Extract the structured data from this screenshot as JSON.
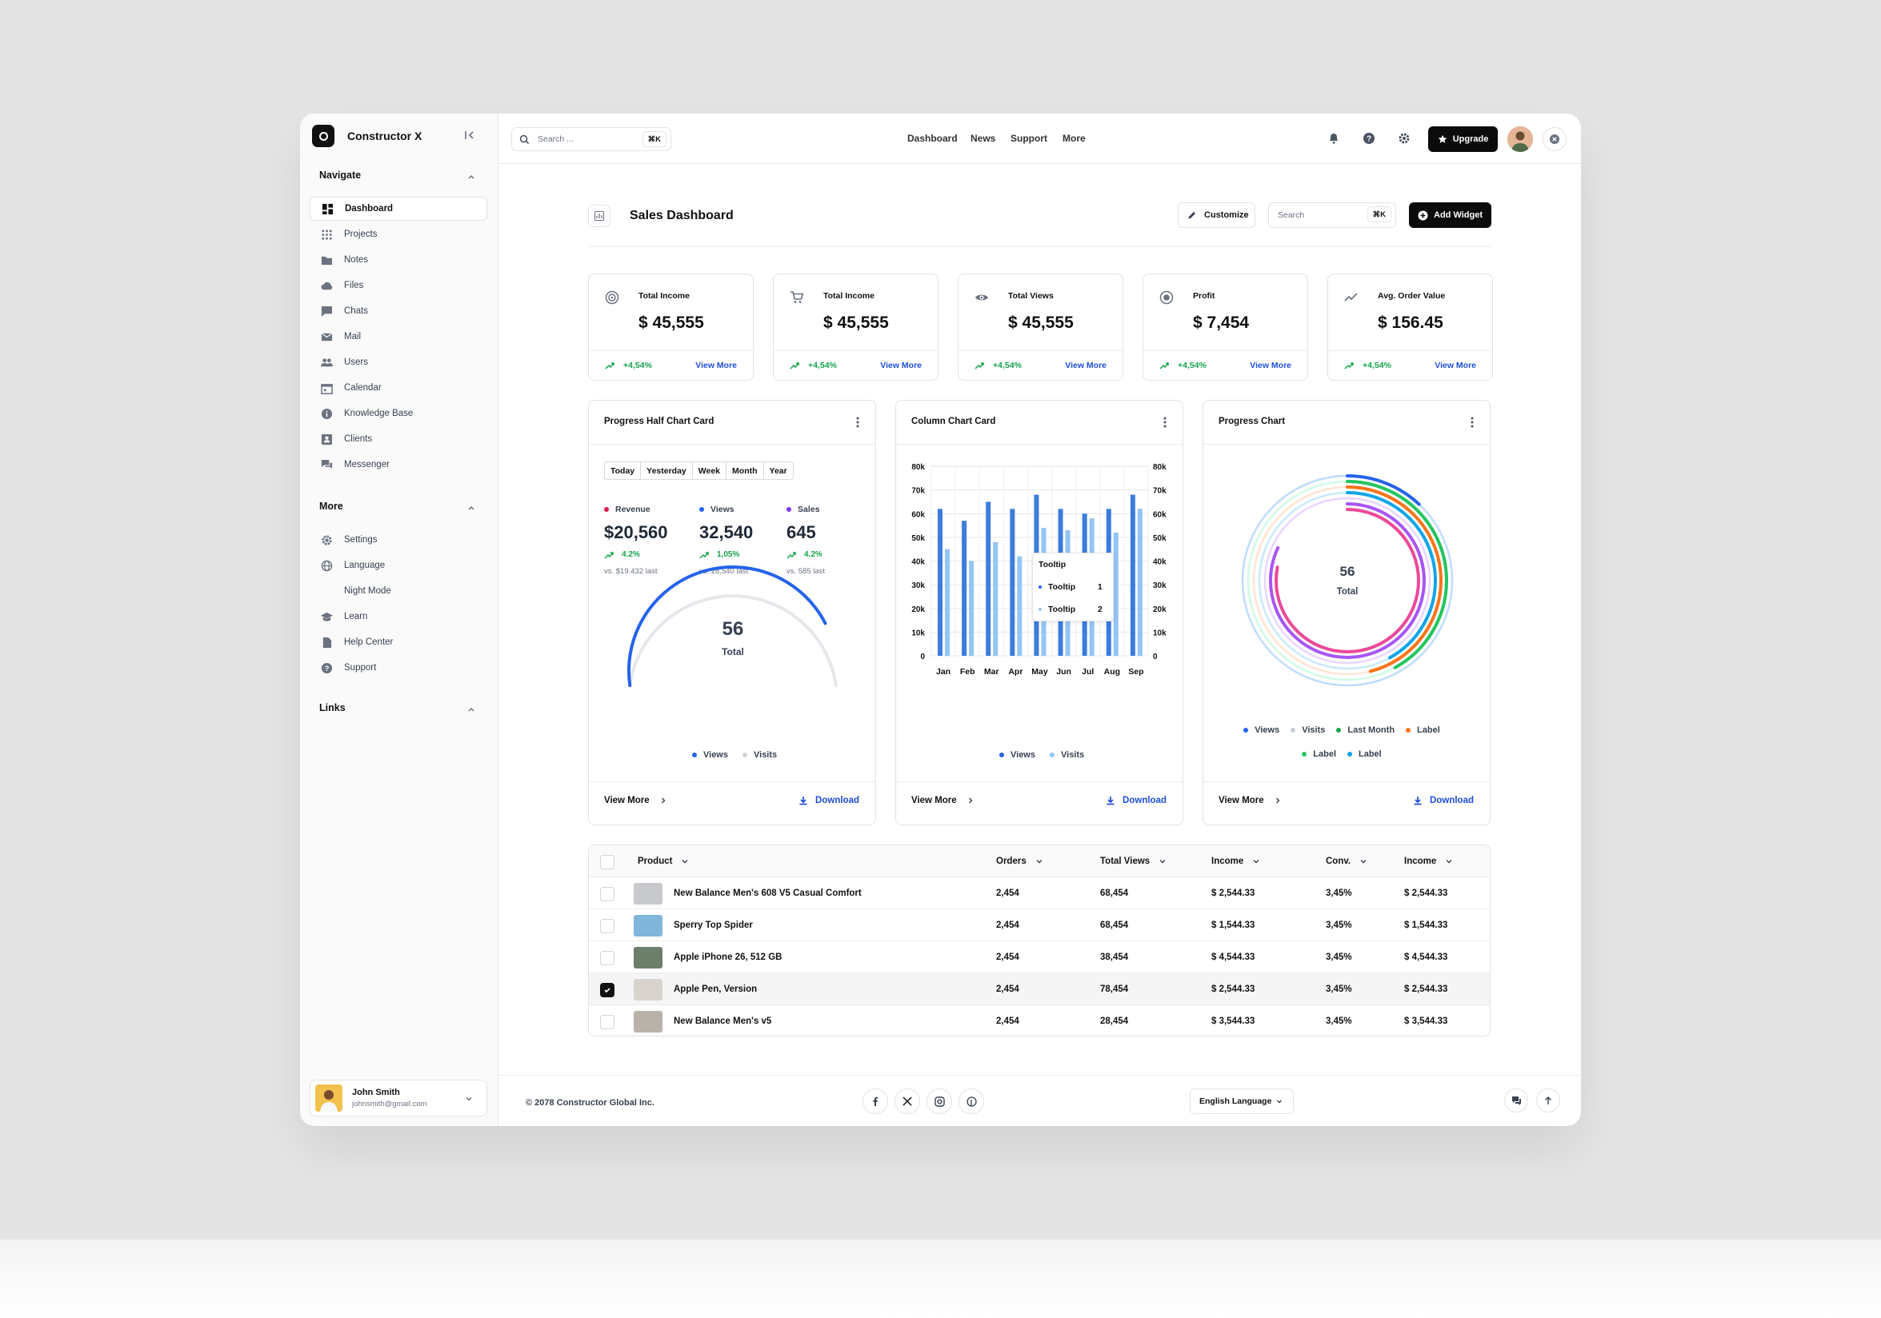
{
  "app": {
    "name": "Constructor X"
  },
  "sidebar": {
    "navigate_title": "Navigate",
    "navigate": [
      {
        "label": "Dashboard",
        "icon": "dashboard-icon"
      },
      {
        "label": "Projects",
        "icon": "grid-icon"
      },
      {
        "label": "Notes",
        "icon": "folder-icon"
      },
      {
        "label": "Files",
        "icon": "cloud-icon"
      },
      {
        "label": "Chats",
        "icon": "chat-icon"
      },
      {
        "label": "Mail",
        "icon": "mail-icon"
      },
      {
        "label": "Users",
        "icon": "users-icon"
      },
      {
        "label": "Calendar",
        "icon": "calendar-icon"
      },
      {
        "label": "Knowledge Base",
        "icon": "info-icon"
      },
      {
        "label": "Clients",
        "icon": "contact-icon"
      },
      {
        "label": "Messenger",
        "icon": "messenger-icon"
      }
    ],
    "more_title": "More",
    "more": [
      {
        "label": "Settings",
        "icon": "gear-icon"
      },
      {
        "label": "Language",
        "icon": "globe-icon"
      },
      {
        "label": "Night Mode",
        "icon": "moon-icon"
      },
      {
        "label": "Learn",
        "icon": "graduation-icon"
      },
      {
        "label": "Help Center",
        "icon": "document-icon"
      },
      {
        "label": "Support",
        "icon": "help-icon"
      }
    ],
    "links_title": "Links",
    "user": {
      "name": "John Smith",
      "email": "johnsmith@gmail.com"
    }
  },
  "topbar": {
    "search_placeholder": "Search ...",
    "search_shortcut": "⌘K",
    "nav": [
      "Dashboard",
      "News",
      "Support",
      "More"
    ],
    "upgrade_label": "Upgrade"
  },
  "page": {
    "title": "Sales Dashboard",
    "customize_label": "Customize",
    "search_placeholder": "Search",
    "search_shortcut": "⌘K",
    "add_widget_label": "Add Widget"
  },
  "stats": [
    {
      "label": "Total Income",
      "value": "$ 45,555",
      "trend": "+4,54%",
      "link": "View More",
      "icon": "target-icon"
    },
    {
      "label": "Total Income",
      "value": "$ 45,555",
      "trend": "+4,54%",
      "link": "View More",
      "icon": "cart-icon"
    },
    {
      "label": "Total Views",
      "value": "$ 45,555",
      "trend": "+4,54%",
      "link": "View More",
      "icon": "eye-icon"
    },
    {
      "label": "Profit",
      "value": "$ 7,454",
      "trend": "+4,54%",
      "link": "View More",
      "icon": "radio-icon"
    },
    {
      "label": "Avg. Order Value",
      "value": "$ 156.45",
      "trend": "+4,54%",
      "link": "View More",
      "icon": "trend-icon"
    }
  ],
  "cards": {
    "half": {
      "title": "Progress Half Chart Card",
      "periods": [
        "Today",
        "Yesterday",
        "Week",
        "Month",
        "Year"
      ],
      "metrics": [
        {
          "label": "Revenue",
          "value": "$20,560",
          "change": "4.2%",
          "sub": "vs. $19.432 last",
          "color": "#e11d48"
        },
        {
          "label": "Views",
          "value": "32,540",
          "change": "1,05%",
          "sub": "vs. 28,540 last",
          "color": "#2563eb"
        },
        {
          "label": "Sales",
          "value": "645",
          "change": "4.2%",
          "sub": "vs. 585 last",
          "color": "#7c3aed"
        }
      ],
      "gauge": {
        "value": "56",
        "label": "Total",
        "fraction": 0.82
      },
      "legend": [
        "Views",
        "Visits"
      ]
    },
    "column": {
      "title": "Column Chart Card",
      "legend": [
        "Views",
        "Visits"
      ],
      "tooltip": {
        "title": "Tooltip",
        "rows": [
          {
            "label": "Tooltip",
            "value": "1"
          },
          {
            "label": "Tooltip",
            "value": "2"
          }
        ]
      }
    },
    "progress": {
      "title": "Progress Chart",
      "center_value": "56",
      "center_label": "Total",
      "legend": [
        {
          "label": "Views",
          "color": "#2563eb"
        },
        {
          "label": "Visits",
          "color": "#c7cdd6"
        },
        {
          "label": "Last Month",
          "color": "#16a34a"
        },
        {
          "label": "Label",
          "color": "#f97316"
        },
        {
          "label": "Label",
          "color": "#22c55e"
        },
        {
          "label": "Label",
          "color": "#0ea5e9"
        }
      ]
    },
    "view_more": "View More",
    "download": "Download"
  },
  "chart_data": [
    {
      "type": "bar",
      "title": "Column Chart Card",
      "categories": [
        "Jan",
        "Feb",
        "Mar",
        "Apr",
        "May",
        "Jun",
        "Jul",
        "Aug",
        "Sep"
      ],
      "series": [
        {
          "name": "Views",
          "values": [
            62000,
            57000,
            65000,
            62000,
            68000,
            62000,
            60000,
            62000,
            68000
          ],
          "color": "#3b7ddd"
        },
        {
          "name": "Visits",
          "values": [
            45000,
            40000,
            48000,
            42000,
            54000,
            53000,
            58000,
            52000,
            62000
          ],
          "color": "#93c5f4"
        }
      ],
      "yticks": [
        "0",
        "10k",
        "20k",
        "30k",
        "40k",
        "50k",
        "60k",
        "70k",
        "80k"
      ],
      "ylim": [
        0,
        80000
      ],
      "grid": true
    },
    {
      "type": "pie",
      "title": "Progress Chart",
      "rings": [
        {
          "color": "#bfdbfe",
          "fraction": 1.0
        },
        {
          "color": "#2563eb",
          "fraction": 0.12
        },
        {
          "color": "#d1fae5",
          "fraction": 1.0
        },
        {
          "color": "#22c55e",
          "fraction": 0.42
        },
        {
          "color": "#ffe4d0",
          "fraction": 1.0
        },
        {
          "color": "#f97316",
          "fraction": 0.46
        },
        {
          "color": "#c9e9f9",
          "fraction": 1.0
        },
        {
          "color": "#0ea5e9",
          "fraction": 0.42
        },
        {
          "color": "#e9d5ff",
          "fraction": 1.0
        },
        {
          "color": "#a855f7",
          "fraction": 0.82
        },
        {
          "color": "#ec4899",
          "fraction": 0.78
        }
      ]
    }
  ],
  "table": {
    "headers": [
      "Product",
      "Orders",
      "Total Views",
      "Income",
      "Conv.",
      "Income"
    ],
    "rows": [
      {
        "product": "New Balance Men's 608 V5 Casual Comfort",
        "orders": "2,454",
        "views": "68,454",
        "income": "$ 2,544.33",
        "conv": "3,45%",
        "income2": "$ 2,544.33",
        "checked": false,
        "thumb": "#c7c9cc"
      },
      {
        "product": "Sperry Top Spider",
        "orders": "2,454",
        "views": "68,454",
        "income": "$ 1,544.33",
        "conv": "3,45%",
        "income2": "$ 1,544.33",
        "checked": false,
        "thumb": "#7fb6d9"
      },
      {
        "product": "Apple iPhone 26, 512 GB",
        "orders": "2,454",
        "views": "38,454",
        "income": "$ 4,544.33",
        "conv": "3,45%",
        "income2": "$ 4,544.33",
        "checked": false,
        "thumb": "#6b7f6a"
      },
      {
        "product": "Apple Pen, Version",
        "orders": "2,454",
        "views": "78,454",
        "income": "$ 2,544.33",
        "conv": "3,45%",
        "income2": "$ 2,544.33",
        "checked": true,
        "thumb": "#d8d3cc"
      },
      {
        "product": "New Balance Men's v5",
        "orders": "2,454",
        "views": "28,454",
        "income": "$ 3,544.33",
        "conv": "3,45%",
        "income2": "$ 3,544.33",
        "checked": false,
        "thumb": "#b9b2a8"
      }
    ]
  },
  "footer": {
    "copyright": "© 2078 Constructor Global Inc.",
    "language": "English Language",
    "socials": [
      "facebook-icon",
      "x-icon",
      "instagram-icon",
      "pinterest-icon"
    ]
  }
}
